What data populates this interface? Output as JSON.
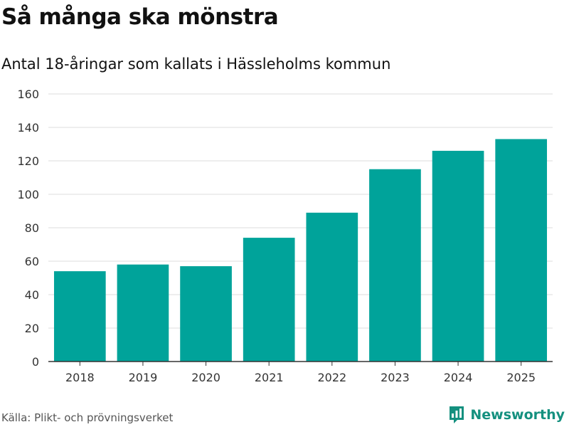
{
  "header": {
    "title": "Så många ska mönstra",
    "subtitle": "Antal 18-åringar som kallats i Hässleholms kommun"
  },
  "footer": {
    "source": "Källa: Plikt- och prövningsverket",
    "brand": "Newsworthy",
    "brand_icon": "bar-chart-logo-icon"
  },
  "colors": {
    "bar": "#00a39a",
    "grid": "#dddddd",
    "axis": "#333333",
    "brand": "#14907f"
  },
  "chart_data": {
    "type": "bar",
    "title": "Så många ska mönstra",
    "subtitle": "Antal 18-åringar som kallats i Hässleholms kommun",
    "categories": [
      "2018",
      "2019",
      "2020",
      "2021",
      "2022",
      "2023",
      "2024",
      "2025"
    ],
    "values": [
      54,
      58,
      57,
      74,
      89,
      115,
      126,
      133
    ],
    "yticks": [
      0,
      20,
      40,
      60,
      80,
      100,
      120,
      140,
      160
    ],
    "ylim": [
      0,
      160
    ],
    "xlabel": "",
    "ylabel": "",
    "grid": true,
    "legend": false
  }
}
